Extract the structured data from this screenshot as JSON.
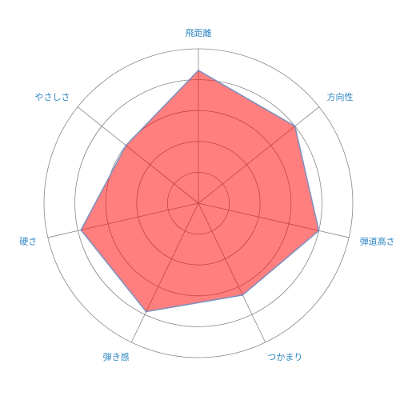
{
  "chart_data": {
    "type": "radar",
    "title": "",
    "categories": [
      "飛距離",
      "方向性",
      "弾道高さ",
      "つかまり",
      "弾き感",
      "硬さ",
      "やさしさ"
    ],
    "values": [
      4.3,
      4.0,
      4.0,
      3.3,
      3.9,
      3.9,
      3.0
    ],
    "r_range": [
      0,
      5
    ],
    "rings": 5,
    "grid": true,
    "legend": "none",
    "colors": {
      "fill": "#ff0000",
      "fill_opacity": 0.5,
      "stroke": "#7b8fbf",
      "grid": "#888888",
      "label": "#2e86c1"
    }
  }
}
